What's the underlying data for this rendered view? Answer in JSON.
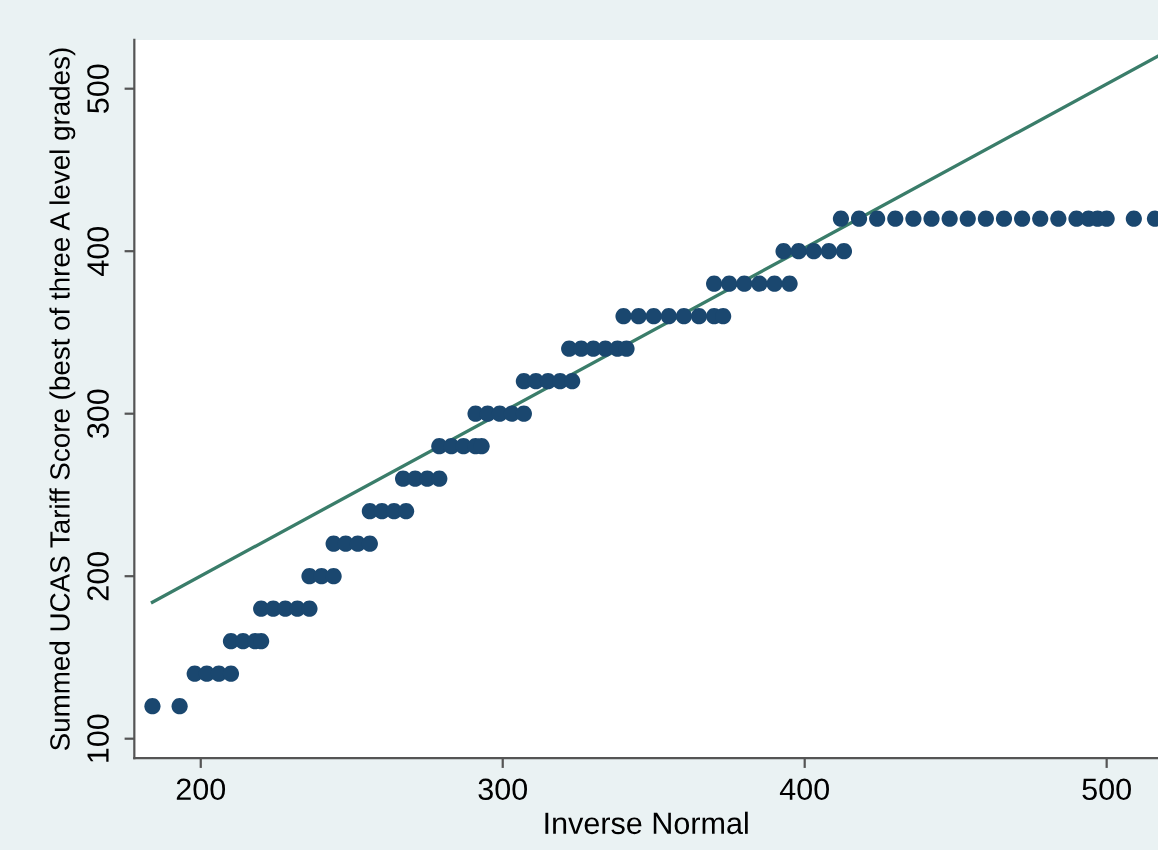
{
  "chart_data": {
    "type": "scatter",
    "xlabel": "Inverse Normal",
    "ylabel": "Summed UCAS Tariff Score (best of three A level grades)",
    "xlim": [
      178,
      517
    ],
    "ylim": [
      88,
      530
    ],
    "xticks": [
      200,
      300,
      400,
      500
    ],
    "yticks": [
      100,
      200,
      300,
      400,
      500
    ],
    "grid": false,
    "legend": false,
    "series": [
      {
        "marker": "circle",
        "color": "#1a476f",
        "x": [
          184,
          193,
          198,
          202,
          206,
          210,
          210,
          214,
          218,
          220,
          220,
          224,
          228,
          232,
          236,
          236,
          240,
          244,
          244,
          248,
          252,
          256,
          256,
          260,
          264,
          268,
          267,
          271,
          275,
          279,
          279,
          283,
          287,
          291,
          293,
          291,
          295,
          299,
          303,
          307,
          307,
          311,
          315,
          319,
          323,
          322,
          326,
          330,
          334,
          338,
          341,
          340,
          345,
          350,
          355,
          360,
          365,
          370,
          373,
          370,
          375,
          380,
          385,
          390,
          395,
          393,
          398,
          403,
          408,
          413,
          412,
          418,
          424,
          430,
          436,
          442,
          448,
          454,
          460,
          466,
          472,
          478,
          484,
          490,
          494,
          497,
          500,
          509,
          516
        ],
        "values": [
          120,
          120,
          140,
          140,
          140,
          140,
          160,
          160,
          160,
          160,
          180,
          180,
          180,
          180,
          180,
          200,
          200,
          200,
          220,
          220,
          220,
          220,
          240,
          240,
          240,
          240,
          260,
          260,
          260,
          260,
          280,
          280,
          280,
          280,
          280,
          300,
          300,
          300,
          300,
          300,
          320,
          320,
          320,
          320,
          320,
          340,
          340,
          340,
          340,
          340,
          340,
          360,
          360,
          360,
          360,
          360,
          360,
          360,
          360,
          380,
          380,
          380,
          380,
          380,
          380,
          400,
          400,
          400,
          400,
          400,
          420,
          420,
          420,
          420,
          420,
          420,
          420,
          420,
          420,
          420,
          420,
          420,
          420,
          420,
          420,
          420,
          420,
          420,
          420
        ]
      },
      {
        "type": "line",
        "color": "#3a7d6a",
        "line_style": "solid",
        "marker": "none",
        "x": [
          184,
          517
        ],
        "values": [
          184,
          520
        ]
      }
    ]
  }
}
